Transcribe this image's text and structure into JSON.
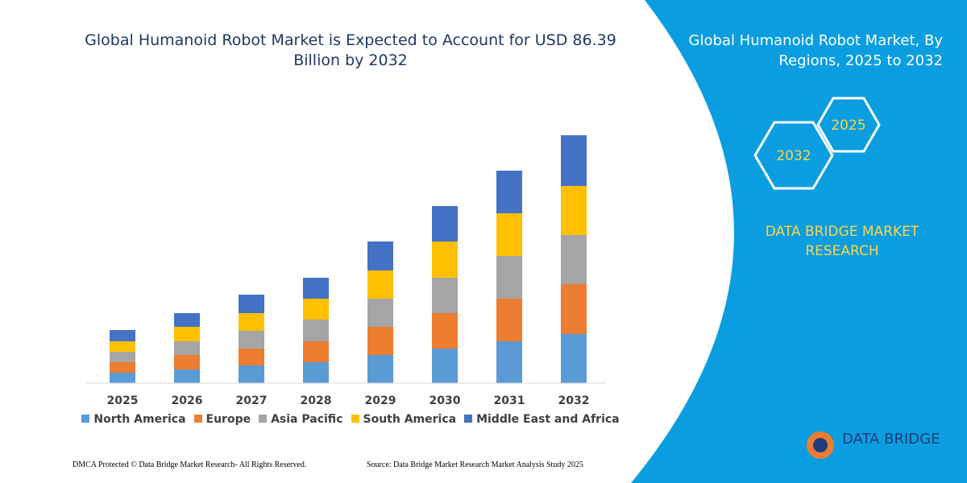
{
  "chart_data": {
    "type": "bar",
    "stacked": true,
    "title": "Global Humanoid Robot Market is Expected to Account for USD 86.39 Billion by 2032",
    "categories": [
      "2025",
      "2026",
      "2027",
      "2028",
      "2029",
      "2030",
      "2031",
      "2032"
    ],
    "series": [
      {
        "name": "North America",
        "color": "#5b9bd5",
        "values": [
          13,
          17,
          22,
          26,
          35,
          43,
          52,
          61
        ]
      },
      {
        "name": "Europe",
        "color": "#ed7d31",
        "values": [
          13,
          18,
          21,
          26,
          35,
          44,
          53,
          62
        ]
      },
      {
        "name": "Asia Pacific",
        "color": "#a5a5a5",
        "values": [
          13,
          17,
          22,
          27,
          35,
          44,
          53,
          61
        ]
      },
      {
        "name": "South America",
        "color": "#ffc000",
        "values": [
          13,
          18,
          22,
          26,
          35,
          45,
          53,
          61
        ]
      },
      {
        "name": "Middle East and Africa",
        "color": "#4472c4",
        "values": [
          14,
          17,
          23,
          26,
          36,
          44,
          53,
          63
        ]
      }
    ],
    "ylim": [
      0,
      320
    ],
    "grid": false
  },
  "panel": {
    "title": "Global Humanoid Robot Market, By Regions, 2025 to 2032",
    "hexagons": [
      "2025",
      "2032"
    ],
    "brand": "DATA BRIDGE MARKET RESEARCH"
  },
  "logo": "DATA BRIDGE",
  "footer": {
    "left": "DMCA Protected © Data Bridge Market Research-  All Rights Reserved.",
    "right": "Source: Data Bridge Market Research  Market Analysis Study 2025"
  }
}
